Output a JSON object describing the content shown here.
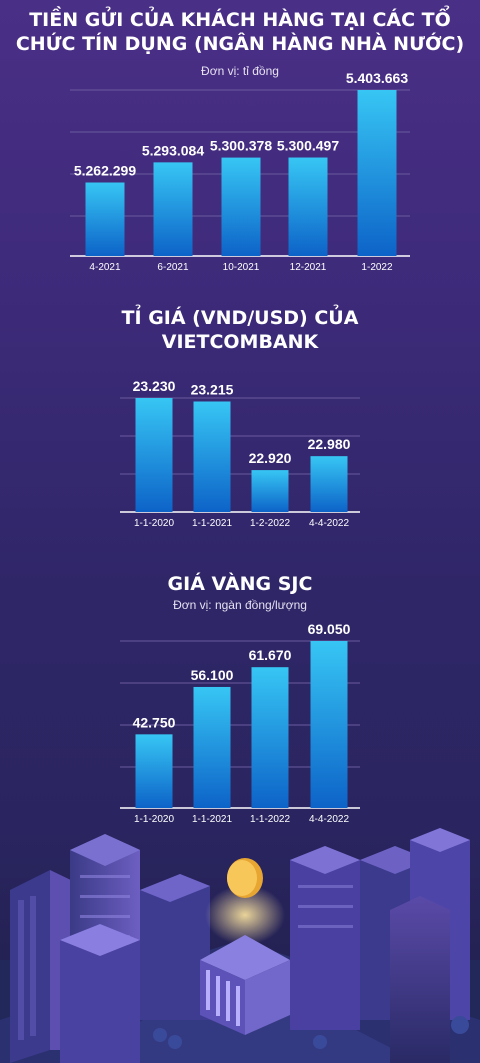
{
  "colors": {
    "bar_top": "#37c6f4",
    "bar_bottom": "#0d63c8",
    "text": "#ffffff",
    "grid": "#6a5a9e"
  },
  "chart_data": [
    {
      "type": "bar",
      "title": "TIỀN GỬI CỦA KHÁCH HÀNG TẠI CÁC TỔ CHỨC TÍN DỤNG (NGÂN HÀNG NHÀ NƯỚC)",
      "unit": "Đơn vị: tỉ đồng",
      "categories": [
        "4-2021",
        "6-2021",
        "10-2021",
        "12-2021",
        "1-2022"
      ],
      "values": [
        5262299,
        5293084,
        5300378,
        5300497,
        5403663
      ],
      "labels": [
        "5.262.299",
        "5.293.084",
        "5.300.378",
        "5.300.497",
        "5.403.663"
      ],
      "ylim": [
        5150000,
        5403663
      ]
    },
    {
      "type": "bar",
      "title": "TỈ GIÁ (VND/USD) CỦA VIETCOMBANK",
      "unit": "",
      "categories": [
        "1-1-2020",
        "1-1-2021",
        "1-2-2022",
        "4-4-2022"
      ],
      "values": [
        23230,
        23215,
        22920,
        22980
      ],
      "labels": [
        "23.230",
        "23.215",
        "22.920",
        "22.980"
      ],
      "ylim": [
        22740,
        23230
      ]
    },
    {
      "type": "bar",
      "title": "GIÁ VÀNG SJC",
      "unit": "Đơn vị: ngàn đồng/lượng",
      "categories": [
        "1-1-2020",
        "1-1-2021",
        "1-1-2022",
        "4-4-2022"
      ],
      "values": [
        42750,
        56100,
        61670,
        69050
      ],
      "labels": [
        "42.750",
        "56.100",
        "61.670",
        "69.050"
      ],
      "ylim": [
        22000,
        69050
      ]
    }
  ]
}
